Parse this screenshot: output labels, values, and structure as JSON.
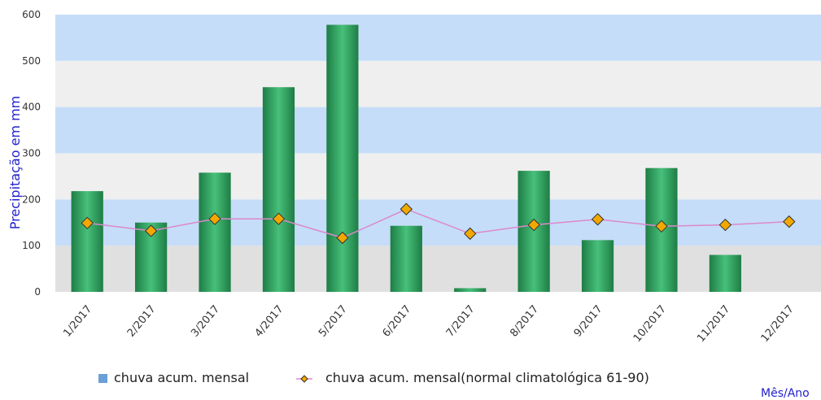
{
  "chart_data": {
    "type": "bar",
    "title": "",
    "xlabel": "Mês/Ano",
    "ylabel": "Precipitação em mm",
    "ylim": [
      0,
      600
    ],
    "yticks": [
      0,
      100,
      200,
      300,
      400,
      500,
      600
    ],
    "categories": [
      "1/2017",
      "2/2017",
      "3/2017",
      "4/2017",
      "5/2017",
      "6/2017",
      "7/2017",
      "8/2017",
      "9/2017",
      "10/2017",
      "11/2017",
      "12/2017"
    ],
    "series": [
      {
        "name": "chuva acum. mensal",
        "type": "bar",
        "values": [
          218,
          150,
          258,
          443,
          578,
          143,
          8,
          262,
          112,
          268,
          80,
          null
        ]
      },
      {
        "name": "chuva acum. mensal(normal climatológica 61-90)",
        "type": "line",
        "values": [
          149,
          132,
          158,
          158,
          117,
          179,
          126,
          145,
          157,
          142,
          145,
          152
        ]
      }
    ],
    "grid": true,
    "legend": "bottom",
    "colors": {
      "bar": "#2e9e5e",
      "bar_dark": "#1e7d45",
      "bar_light": "#47c07a",
      "line": "#dd88cc",
      "marker_fill": "#f3a800",
      "marker_stroke": "#333333",
      "band_blue": "#c5ddf8",
      "band_light": "#efefef",
      "band_gray": "#e0e0e0",
      "legend_bar_swatch": "#6a9fd8"
    }
  }
}
